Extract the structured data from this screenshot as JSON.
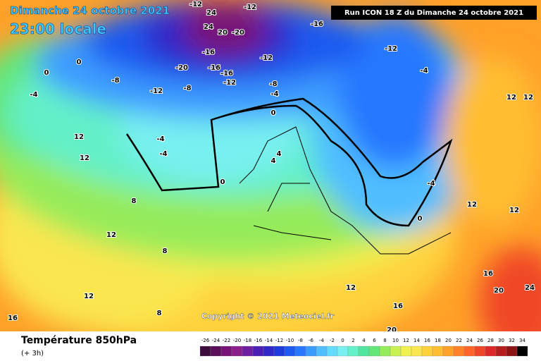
{
  "header": {
    "date": "Dimanche 24 octobre 2021",
    "time": "23:00 locale",
    "run": "Run ICON 18 Z du Dimanche 24 octobre 2021",
    "copyright": "Copyright © 2021 Meteociel.fr"
  },
  "footer": {
    "title": "Température 850hPa",
    "lead": "(+ 3h)"
  },
  "scale": {
    "labels": [
      -26,
      -24,
      -22,
      -20,
      -18,
      -16,
      -14,
      -12,
      -10,
      -8,
      -6,
      -4,
      -2,
      0,
      2,
      4,
      6,
      8,
      10,
      12,
      14,
      16,
      18,
      20,
      22,
      24,
      26,
      28,
      30,
      32,
      34
    ],
    "colors": [
      "#3c0a3c",
      "#5a0f5a",
      "#781478",
      "#8c1e8c",
      "#6e1e9e",
      "#4b1eb4",
      "#3228c8",
      "#1e3cdc",
      "#1e5af0",
      "#2878ff",
      "#3c9bff",
      "#50beff",
      "#64dcff",
      "#78f0f0",
      "#64f0c8",
      "#50e6a0",
      "#64e678",
      "#96eb5a",
      "#c8f050",
      "#f0f050",
      "#fae650",
      "#ffd23c",
      "#ffbe32",
      "#ffa028",
      "#ff8228",
      "#ff6428",
      "#f04628",
      "#dc2828",
      "#b41e1e",
      "#8c1414",
      "#000000"
    ]
  },
  "map_labels": [
    -12,
    24,
    24,
    20,
    -20,
    -16,
    -12,
    -12,
    -16,
    -20,
    -16,
    -16,
    -12,
    -8,
    -12,
    -8,
    -12,
    -8,
    -4,
    -4,
    0,
    0,
    -4,
    -4,
    -4,
    0,
    0,
    4,
    4,
    12,
    12,
    12,
    8,
    12,
    8,
    12,
    16,
    12,
    16,
    20,
    24,
    20,
    12,
    -4,
    0,
    12,
    16,
    8,
    12
  ]
}
